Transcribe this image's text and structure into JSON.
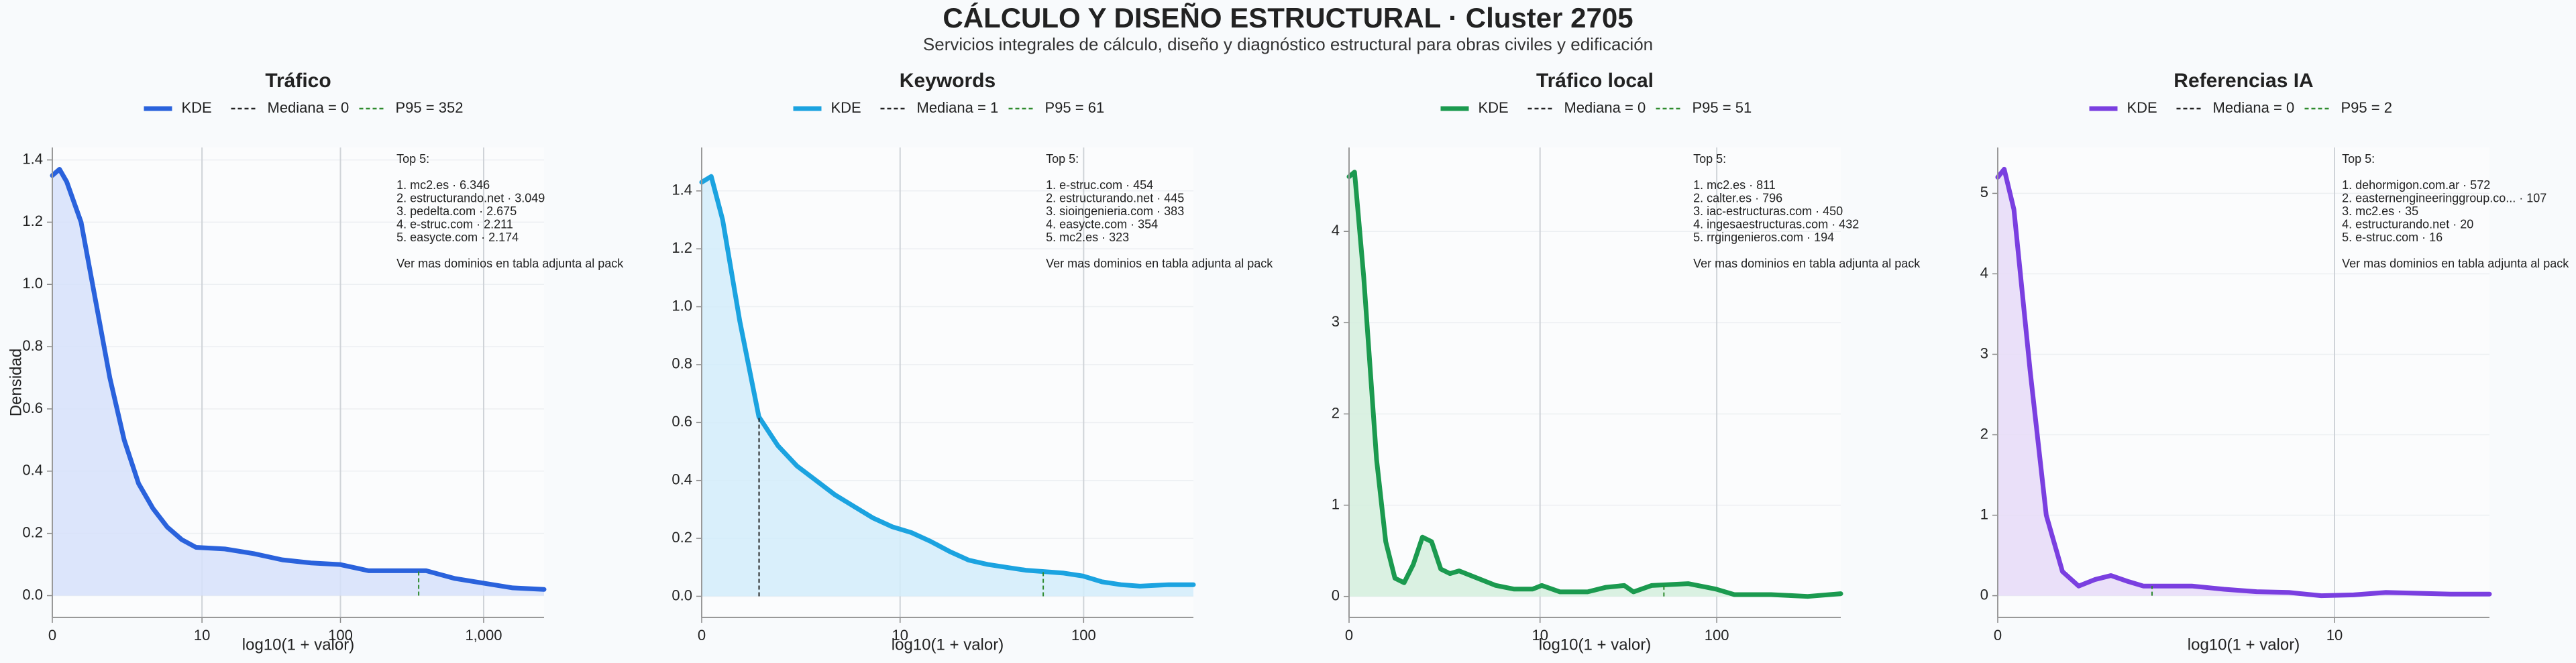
{
  "title": "CÁLCULO Y DISEÑO ESTRUCTURAL · Cluster 2705",
  "subtitle": "Servicios integrales de cálculo, diseño y diagnóstico estructural para obras civiles y edificación",
  "chart_data": [
    {
      "type": "line",
      "title": "Tráfico",
      "xlabel": "log10(1 + valor)",
      "ylabel": "Densidad",
      "x": [
        0,
        0.05,
        0.1,
        0.2,
        0.3,
        0.4,
        0.5,
        0.6,
        0.7,
        0.8,
        0.9,
        1.0,
        1.2,
        1.4,
        1.6,
        1.8,
        2.0,
        2.2,
        2.4,
        2.6,
        2.8,
        3.0,
        3.2,
        3.42
      ],
      "series": [
        {
          "name": "KDE",
          "color": "#2a62dc",
          "fill": "#d6e0fa",
          "values": [
            1.35,
            1.37,
            1.33,
            1.2,
            0.95,
            0.7,
            0.5,
            0.36,
            0.28,
            0.22,
            0.18,
            0.155,
            0.15,
            0.135,
            0.115,
            0.105,
            0.1,
            0.08,
            0.08,
            0.08,
            0.055,
            0.04,
            0.025,
            0.02
          ]
        }
      ],
      "reference_lines": [
        {
          "name": "Mediana = 0",
          "x": 0,
          "color": "#222222"
        },
        {
          "name": "P95 = 352",
          "x": 2.548,
          "color": "#2e8b2e"
        }
      ],
      "xlim": [
        0,
        3.42
      ],
      "ylim": [
        -0.07,
        1.44
      ],
      "xticks": [
        0,
        {
          "value": 1.041,
          "label": "10"
        },
        {
          "value": 2.004,
          "label": "100"
        },
        {
          "value": 3.0,
          "label": "1,000"
        }
      ],
      "yticks": [
        {
          "value": 0,
          "label": "0.0"
        },
        0.2,
        0.4,
        0.6,
        0.8,
        {
          "value": 1,
          "label": "1.0"
        },
        1.2,
        1.4
      ],
      "grid": true,
      "annotation": {
        "title": "Top 5:",
        "items": [
          "1. mc2.es · 6.346",
          "2. estructurando.net · 3.049",
          "3. pedelta.com · 2.675",
          "4. e-struc.com · 2.211",
          "5. easycte.com · 2.174"
        ],
        "note": "Ver mas dominios en tabla adjunta al pack"
      }
    },
    {
      "type": "line",
      "title": "Keywords",
      "xlabel": "log10(1 + valor)",
      "x": [
        0,
        0.05,
        0.11,
        0.2,
        0.3,
        0.4,
        0.5,
        0.6,
        0.7,
        0.8,
        0.9,
        1.0,
        1.1,
        1.2,
        1.3,
        1.4,
        1.5,
        1.6,
        1.7,
        1.8,
        1.9,
        2.0,
        2.1,
        2.2,
        2.3,
        2.45,
        2.58
      ],
      "series": [
        {
          "name": "KDE",
          "color": "#1ba3e0",
          "fill": "#d2ecfa",
          "values": [
            1.43,
            1.45,
            1.3,
            0.95,
            0.62,
            0.52,
            0.45,
            0.4,
            0.35,
            0.31,
            0.27,
            0.24,
            0.22,
            0.19,
            0.155,
            0.125,
            0.11,
            0.1,
            0.09,
            0.085,
            0.08,
            0.07,
            0.05,
            0.04,
            0.035,
            0.04,
            0.04
          ]
        }
      ],
      "reference_lines": [
        {
          "name": "Mediana = 1",
          "x": 0.301,
          "color": "#222222"
        },
        {
          "name": "P95 = 61",
          "x": 1.792,
          "color": "#2e8b2e"
        }
      ],
      "xlim": [
        0,
        2.58
      ],
      "ylim": [
        -0.073,
        1.55
      ],
      "xticks": [
        0,
        {
          "value": 1.041,
          "label": "10"
        },
        {
          "value": 2.004,
          "label": "100"
        }
      ],
      "yticks": [
        {
          "value": 0,
          "label": "0.0"
        },
        0.2,
        0.4,
        0.6,
        0.8,
        {
          "value": 1,
          "label": "1.0"
        },
        1.2,
        1.4
      ],
      "grid": true,
      "annotation": {
        "title": "Top 5:",
        "items": [
          "1. e-struc.com · 454",
          "2. estructurando.net · 445",
          "3. sioingenieria.com · 383",
          "4. easycte.com · 354",
          "5. mc2.es · 323"
        ],
        "note": "Ver mas dominios en tabla adjunta al pack"
      }
    },
    {
      "type": "line",
      "title": "Tráfico local",
      "xlabel": "log10(1 + valor)",
      "x": [
        0,
        0.03,
        0.08,
        0.15,
        0.2,
        0.25,
        0.3,
        0.35,
        0.4,
        0.45,
        0.5,
        0.55,
        0.6,
        0.7,
        0.8,
        0.9,
        1.0,
        1.05,
        1.15,
        1.3,
        1.4,
        1.5,
        1.55,
        1.65,
        1.75,
        1.85,
        2.0,
        2.1,
        2.3,
        2.5,
        2.68
      ],
      "series": [
        {
          "name": "KDE",
          "color": "#1b9a4f",
          "fill": "#d3eedd",
          "values": [
            4.6,
            4.65,
            3.5,
            1.5,
            0.6,
            0.2,
            0.15,
            0.35,
            0.65,
            0.6,
            0.3,
            0.25,
            0.28,
            0.2,
            0.12,
            0.08,
            0.08,
            0.12,
            0.05,
            0.05,
            0.1,
            0.12,
            0.05,
            0.12,
            0.13,
            0.14,
            0.08,
            0.02,
            0.02,
            0,
            0.03
          ]
        }
      ],
      "reference_lines": [
        {
          "name": "Mediana = 0",
          "x": 0,
          "color": "#222222"
        },
        {
          "name": "P95 = 51",
          "x": 1.716,
          "color": "#2e8b2e"
        }
      ],
      "xlim": [
        0,
        2.68
      ],
      "ylim": [
        -0.23,
        4.92
      ],
      "xticks": [
        0,
        {
          "value": 1.041,
          "label": "10"
        },
        {
          "value": 2.004,
          "label": "100"
        }
      ],
      "yticks": [
        0,
        1,
        2,
        3,
        4
      ],
      "grid": true,
      "annotation": {
        "title": "Top 5:",
        "items": [
          "1. mc2.es · 811",
          "2. calter.es · 796",
          "3. iac-estructuras.com · 450",
          "4. ingesaestructuras.com · 432",
          "5. rrgingenieros.com · 194"
        ],
        "note": "Ver mas dominios en tabla adjunta al pack"
      }
    },
    {
      "type": "line",
      "title": "Referencias IA",
      "xlabel": "log10(1 + valor)",
      "x": [
        0,
        0.02,
        0.05,
        0.1,
        0.15,
        0.2,
        0.25,
        0.3,
        0.35,
        0.4,
        0.45,
        0.5,
        0.6,
        0.7,
        0.8,
        0.9,
        1.0,
        1.1,
        1.2,
        1.3,
        1.4,
        1.52
      ],
      "series": [
        {
          "name": "KDE",
          "color": "#7a3fe0",
          "fill": "#e6dbf8",
          "values": [
            5.2,
            5.3,
            4.8,
            2.8,
            1.0,
            0.3,
            0.12,
            0.2,
            0.25,
            0.18,
            0.12,
            0.12,
            0.12,
            0.08,
            0.05,
            0.04,
            0,
            0.01,
            0.04,
            0.03,
            0.02,
            0.02
          ]
        }
      ],
      "reference_lines": [
        {
          "name": "Mediana = 0",
          "x": 0,
          "color": "#222222"
        },
        {
          "name": "P95 = 2",
          "x": 0.477,
          "color": "#2e8b2e"
        }
      ],
      "xlim": [
        0,
        1.52
      ],
      "ylim": [
        -0.27,
        5.57
      ],
      "xticks": [
        0,
        {
          "value": 1.041,
          "label": "10"
        }
      ],
      "yticks": [
        0,
        1,
        2,
        3,
        4,
        5
      ],
      "grid": true,
      "annotation": {
        "title": "Top 5:",
        "items": [
          "1. dehormigon.com.ar · 572",
          "2. easternengineeringgroup.co... · 107",
          "3. mc2.es · 35",
          "4. estructurando.net · 20",
          "5. e-struc.com · 16"
        ],
        "note": "Ver mas dominios en tabla adjunta al pack"
      }
    }
  ]
}
